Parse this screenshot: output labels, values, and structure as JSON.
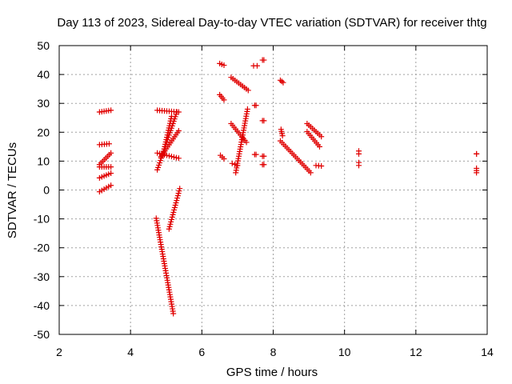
{
  "chart_data": {
    "type": "scatter",
    "title": "Day 113 of 2023, Sidereal Day-to-day VTEC variation (SDTVAR) for receiver thtg",
    "xlabel": "GPS time / hours",
    "ylabel": "SDTVAR / TECUs",
    "xlim": [
      2,
      14
    ],
    "ylim": [
      -50,
      50
    ],
    "xticks": [
      "2",
      "4",
      "6",
      "8",
      "10",
      "12",
      "14"
    ],
    "yticks": [
      "50",
      "40",
      "30",
      "20",
      "10",
      "0",
      "-10",
      "-20",
      "-30",
      "-40",
      "-50"
    ],
    "grid": true,
    "marker": "+",
    "color": "#e00000",
    "segments": [
      {
        "x": [
          3.13,
          3.45
        ],
        "y": [
          27.0,
          27.6
        ]
      },
      {
        "x": [
          3.13,
          3.4
        ],
        "y": [
          15.7,
          16.0
        ]
      },
      {
        "x": [
          3.13,
          3.45
        ],
        "y": [
          8.0,
          8.0
        ]
      },
      {
        "x": [
          3.13,
          3.45
        ],
        "y": [
          8.8,
          12.8
        ]
      },
      {
        "x": [
          3.13,
          3.45
        ],
        "y": [
          4.2,
          5.8
        ]
      },
      {
        "x": [
          3.13,
          3.45
        ],
        "y": [
          -0.6,
          1.6
        ]
      },
      {
        "x": [
          4.75,
          5.35
        ],
        "y": [
          27.6,
          27.0
        ]
      },
      {
        "x": [
          4.75,
          5.35
        ],
        "y": [
          12.8,
          11.0
        ]
      },
      {
        "x": [
          4.75,
          5.3
        ],
        "y": [
          7.0,
          27.0
        ]
      },
      {
        "x": [
          4.85,
          5.35
        ],
        "y": [
          11.5,
          20.5
        ]
      },
      {
        "x": [
          4.9,
          5.15
        ],
        "y": [
          11.8,
          25.5
        ]
      },
      {
        "x": [
          4.72,
          5.2
        ],
        "y": [
          -9.8,
          -42.8
        ]
      },
      {
        "x": [
          5.08,
          5.38
        ],
        "y": [
          -13.5,
          0.5
        ]
      },
      {
        "x": [
          6.5,
          6.62
        ],
        "y": [
          43.8,
          43.2
        ]
      },
      {
        "x": [
          6.5,
          6.62
        ],
        "y": [
          33.0,
          31.2
        ]
      },
      {
        "x": [
          6.52,
          6.62
        ],
        "y": [
          12.0,
          10.8
        ]
      },
      {
        "x": [
          6.82,
          7.3
        ],
        "y": [
          39.0,
          34.5
        ]
      },
      {
        "x": [
          6.82,
          7.25
        ],
        "y": [
          23.0,
          16.5
        ]
      },
      {
        "x": [
          6.85,
          7.0
        ],
        "y": [
          9.2,
          8.5
        ]
      },
      {
        "x": [
          6.95,
          7.28
        ],
        "y": [
          6.0,
          28.0
        ]
      },
      {
        "x": [
          7.45,
          7.55
        ],
        "y": [
          43.0,
          43.0
        ]
      },
      {
        "x": [
          7.48,
          7.52
        ],
        "y": [
          29.3,
          29.3
        ]
      },
      {
        "x": [
          7.48,
          7.52
        ],
        "y": [
          12.3,
          12.3
        ]
      },
      {
        "x": [
          7.7,
          7.74
        ],
        "y": [
          45.0,
          45.0
        ]
      },
      {
        "x": [
          7.7,
          7.74
        ],
        "y": [
          24.0,
          24.0
        ]
      },
      {
        "x": [
          7.7,
          7.74
        ],
        "y": [
          11.7,
          11.7
        ]
      },
      {
        "x": [
          7.7,
          7.74
        ],
        "y": [
          8.8,
          8.8
        ]
      },
      {
        "x": [
          8.2,
          8.28
        ],
        "y": [
          38.0,
          37.2
        ]
      },
      {
        "x": [
          8.22,
          8.26
        ],
        "y": [
          21.0,
          18.8
        ]
      },
      {
        "x": [
          8.2,
          9.05
        ],
        "y": [
          17.0,
          6.0
        ]
      },
      {
        "x": [
          8.95,
          9.35
        ],
        "y": [
          23.0,
          18.5
        ]
      },
      {
        "x": [
          8.95,
          9.3
        ],
        "y": [
          20.2,
          15.0
        ]
      },
      {
        "x": [
          9.2,
          9.35
        ],
        "y": [
          8.5,
          8.3
        ]
      },
      {
        "x": [
          10.4,
          10.4
        ],
        "y": [
          13.5,
          12.5
        ]
      },
      {
        "x": [
          10.4,
          10.4
        ],
        "y": [
          9.5,
          8.5
        ]
      },
      {
        "x": [
          13.7,
          13.7
        ],
        "y": [
          12.5,
          12.5
        ]
      },
      {
        "x": [
          13.7,
          13.7
        ],
        "y": [
          7.5,
          6.0
        ]
      }
    ]
  }
}
